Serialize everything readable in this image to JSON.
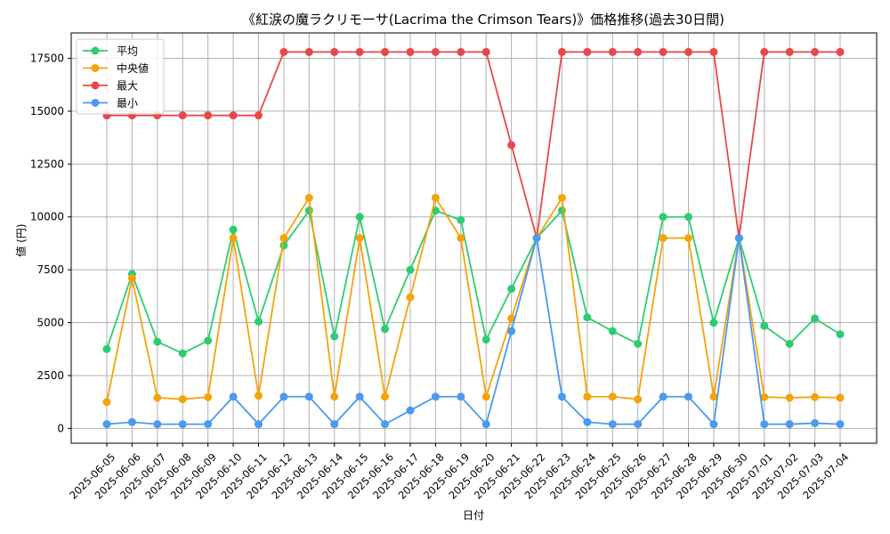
{
  "chart_data": {
    "type": "line",
    "title": "《紅涙の魔ラクリモーサ(Lacrima the Crimson Tears)》価格推移(過去30日間)",
    "xlabel": "日付",
    "ylabel": "値 (円)",
    "ylim": [
      -700,
      18700
    ],
    "yticks": [
      0,
      2500,
      5000,
      7500,
      10000,
      12500,
      15000,
      17500
    ],
    "grid": true,
    "legend_position": "top-left",
    "categories": [
      "2025-06-05",
      "2025-06-06",
      "2025-06-07",
      "2025-06-08",
      "2025-06-09",
      "2025-06-10",
      "2025-06-11",
      "2025-06-12",
      "2025-06-13",
      "2025-06-14",
      "2025-06-15",
      "2025-06-16",
      "2025-06-17",
      "2025-06-18",
      "2025-06-19",
      "2025-06-20",
      "2025-06-21",
      "2025-06-22",
      "2025-06-23",
      "2025-06-24",
      "2025-06-25",
      "2025-06-26",
      "2025-06-27",
      "2025-06-28",
      "2025-06-29",
      "2025-06-30",
      "2025-07-01",
      "2025-07-02",
      "2025-07-03",
      "2025-07-04"
    ],
    "series": [
      {
        "name": "平均",
        "color": "#2ecc71",
        "values": [
          3750,
          7300,
          4100,
          3550,
          4150,
          9400,
          5050,
          8650,
          10300,
          4350,
          10000,
          4700,
          7500,
          10300,
          9850,
          4200,
          6600,
          9000,
          10300,
          5250,
          4600,
          4000,
          10000,
          10000,
          5000,
          9000,
          4850,
          4000,
          5200,
          4450
        ]
      },
      {
        "name": "中央値",
        "color": "#f5a30a",
        "values": [
          1250,
          7100,
          1450,
          1380,
          1480,
          9000,
          1550,
          9000,
          10900,
          1500,
          9000,
          1500,
          6200,
          10900,
          9000,
          1500,
          5200,
          9000,
          10900,
          1500,
          1500,
          1380,
          9000,
          9000,
          1500,
          9000,
          1480,
          1450,
          1480,
          1450
        ]
      },
      {
        "name": "最大",
        "color": "#e84848",
        "values": [
          14800,
          14800,
          14800,
          14800,
          14800,
          14800,
          14800,
          17800,
          17800,
          17800,
          17800,
          17800,
          17800,
          17800,
          17800,
          17800,
          13400,
          9000,
          17800,
          17800,
          17800,
          17800,
          17800,
          17800,
          17800,
          9000,
          17800,
          17800,
          17800,
          17800
        ]
      },
      {
        "name": "最小",
        "color": "#4a9af0",
        "values": [
          200,
          300,
          200,
          200,
          200,
          1500,
          200,
          1500,
          1500,
          200,
          1500,
          200,
          850,
          1500,
          1500,
          200,
          4600,
          9000,
          1500,
          300,
          200,
          200,
          1500,
          1500,
          200,
          9000,
          200,
          200,
          250,
          200
        ]
      }
    ]
  }
}
